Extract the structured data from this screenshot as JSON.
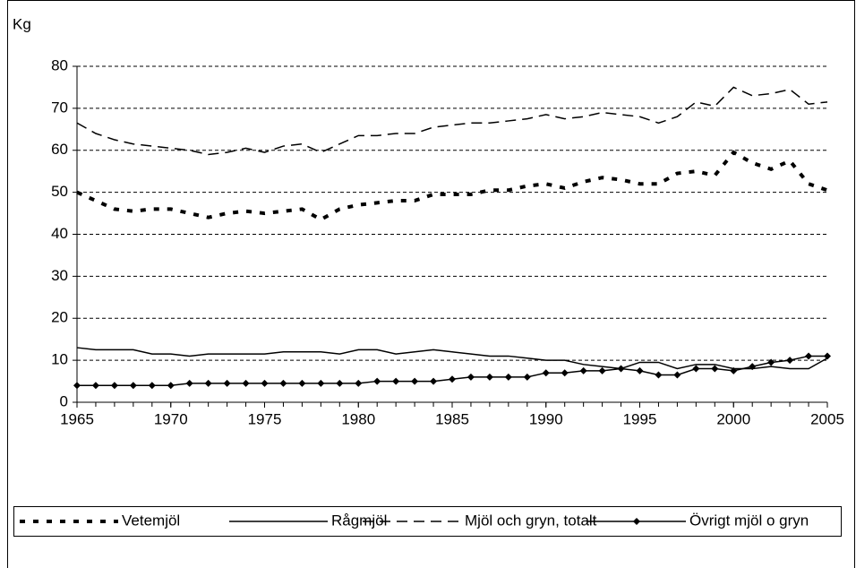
{
  "chart_data": {
    "type": "line",
    "y_label": "Kg",
    "x": [
      1965,
      1966,
      1967,
      1968,
      1969,
      1970,
      1971,
      1972,
      1973,
      1974,
      1975,
      1976,
      1977,
      1978,
      1979,
      1980,
      1981,
      1982,
      1983,
      1984,
      1985,
      1986,
      1987,
      1988,
      1989,
      1990,
      1991,
      1992,
      1993,
      1994,
      1995,
      1996,
      1997,
      1998,
      1999,
      2000,
      2001,
      2002,
      2003,
      2004,
      2005
    ],
    "series": [
      {
        "name": "Vetemjöl",
        "color": "#000000",
        "values": [
          50,
          48,
          46,
          45.5,
          46,
          46,
          45,
          44,
          45,
          45.5,
          45,
          45.5,
          46,
          43.5,
          46,
          47,
          47.5,
          48,
          48,
          49.5,
          49.5,
          49.5,
          50.5,
          50.5,
          51.5,
          52,
          51,
          52.5,
          53.5,
          53,
          52,
          52,
          54.5,
          55,
          54,
          59.5,
          57,
          55.5,
          57.5,
          52,
          50.5
        ]
      },
      {
        "name": "Rågmjöl",
        "color": "#000000",
        "values": [
          13,
          12.5,
          12.5,
          12.5,
          11.5,
          11.5,
          11,
          11.5,
          11.5,
          11.5,
          11.5,
          12,
          12,
          12,
          11.5,
          12.5,
          12.5,
          11.5,
          12,
          12.5,
          12,
          11.5,
          11,
          11,
          10.5,
          10,
          10,
          9,
          8.5,
          8,
          9.5,
          9.5,
          8,
          9,
          9,
          8,
          8,
          8.5,
          8,
          8,
          10.5
        ]
      },
      {
        "name": "Mjöl och gryn, totalt",
        "color": "#000000",
        "values": [
          66.5,
          64,
          62.5,
          61.5,
          61,
          60.5,
          60,
          59,
          59.5,
          60.5,
          59.5,
          61,
          61.5,
          59.5,
          61.5,
          63.5,
          63.5,
          64,
          64,
          65.5,
          66,
          66.5,
          66.5,
          67,
          67.5,
          68.5,
          67.5,
          68,
          69,
          68.5,
          68,
          66.5,
          68,
          71.5,
          70.5,
          75,
          73,
          73.5,
          74.5,
          71,
          71.5
        ]
      },
      {
        "name": "Övrigt mjöl o gryn",
        "color": "#000000",
        "values": [
          4,
          4,
          4,
          4,
          4,
          4,
          4.5,
          4.5,
          4.5,
          4.5,
          4.5,
          4.5,
          4.5,
          4.5,
          4.5,
          4.5,
          5,
          5,
          5,
          5,
          5.5,
          6,
          6,
          6,
          6,
          7,
          7,
          7.5,
          7.5,
          8,
          7.5,
          6.5,
          6.5,
          8,
          8,
          7.5,
          8.5,
          9.5,
          10,
          11,
          11
        ]
      }
    ],
    "xlim": [
      1965,
      2005
    ],
    "xticks": [
      1965,
      1970,
      1975,
      1980,
      1985,
      1990,
      1995,
      2000,
      2005
    ],
    "ylim": [
      0,
      80
    ],
    "yticks": [
      0,
      10,
      20,
      30,
      40,
      50,
      60,
      70,
      80
    ],
    "grid": true,
    "legend": "bottom"
  }
}
